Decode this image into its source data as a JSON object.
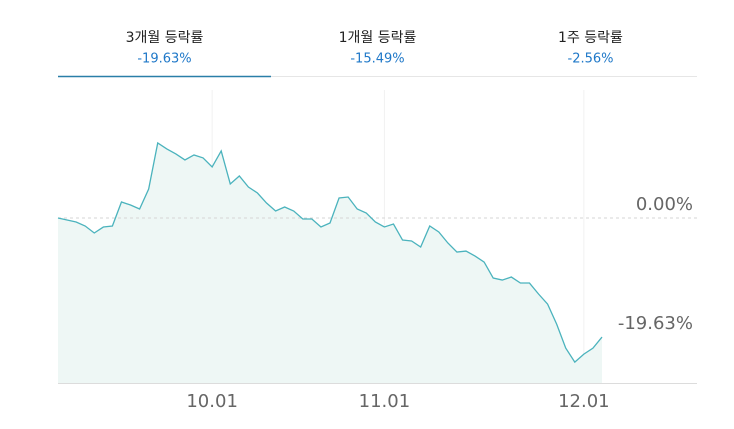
{
  "tabs": [
    {
      "label": "3개월 등락률",
      "value": "-19.63%"
    },
    {
      "label": "1개월 등락률",
      "value": "-15.49%"
    },
    {
      "label": "1주 등락률",
      "value": "-2.56%"
    }
  ],
  "active_tab": 0,
  "chart_data": {
    "type": "line",
    "categories": [
      null,
      null,
      null,
      null,
      null,
      null,
      null,
      null,
      null,
      null,
      null,
      null,
      null,
      null,
      null,
      null,
      null,
      "10.01",
      null,
      null,
      null,
      null,
      null,
      null,
      null,
      null,
      null,
      null,
      null,
      null,
      null,
      null,
      null,
      null,
      null,
      null,
      "11.01",
      null,
      null,
      null,
      null,
      null,
      null,
      null,
      null,
      null,
      null,
      null,
      null,
      null,
      null,
      null,
      null,
      null,
      null,
      null,
      null,
      null,
      "12.01",
      null,
      null
    ],
    "series": [
      {
        "color": "#4bb3bd",
        "fill": "#eef7f5",
        "values": [
          0,
          -0.33,
          -0.66,
          -1.32,
          -2.47,
          -1.49,
          -1.32,
          2.64,
          2.14,
          1.48,
          4.78,
          12.37,
          11.38,
          10.56,
          9.57,
          10.39,
          9.9,
          8.41,
          11.05,
          5.61,
          6.93,
          5.11,
          4.12,
          2.47,
          1.15,
          1.81,
          1.15,
          -0.16,
          -0.16,
          -1.48,
          -0.82,
          3.3,
          3.46,
          1.48,
          0.82,
          -0.66,
          -1.48,
          -0.99,
          -3.63,
          -3.79,
          -4.78,
          -1.31,
          -2.31,
          -4.12,
          -5.61,
          -5.45,
          -6.27,
          -7.26,
          -9.9,
          -10.23,
          -9.73,
          -10.72,
          -10.72,
          -12.53,
          -14.19,
          -17.49,
          -21.45,
          -23.76,
          -22.44,
          -21.45,
          -19.63
        ]
      }
    ],
    "ylim": [
      -27.2,
      21.1
    ],
    "yticks": [
      {
        "value": 0,
        "label": "0.00%"
      },
      {
        "value": -19.63,
        "label": "-19.63%"
      }
    ]
  }
}
